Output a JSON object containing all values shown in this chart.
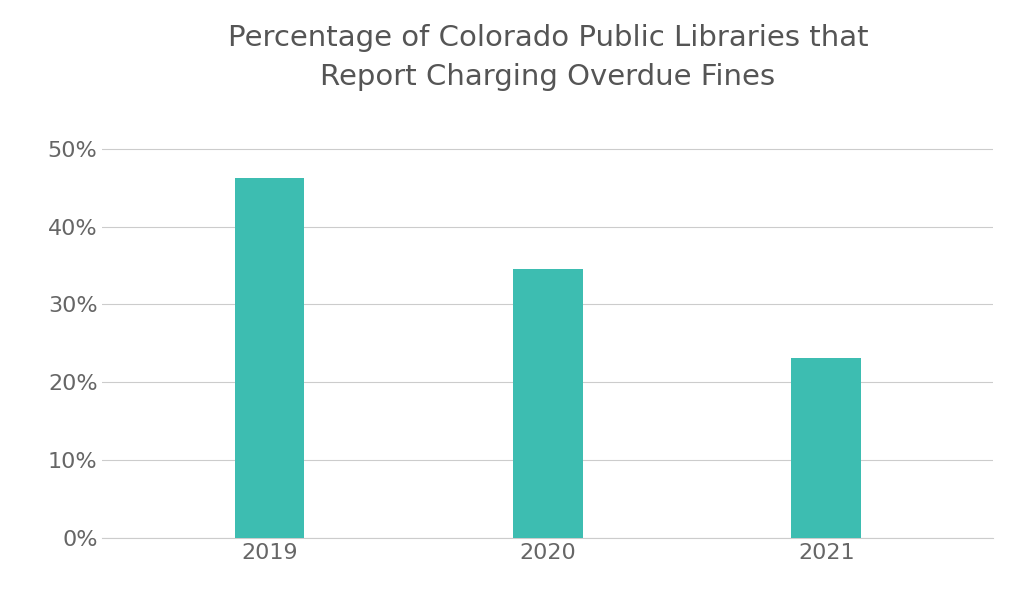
{
  "categories": [
    "2019",
    "2020",
    "2021"
  ],
  "values": [
    46.3,
    34.5,
    23.1
  ],
  "bar_color": "#3dbdb1",
  "title": "Percentage of Colorado Public Libraries that\nReport Charging Overdue Fines",
  "title_fontsize": 21,
  "title_color": "#555555",
  "tick_label_color": "#666666",
  "tick_label_fontsize": 16,
  "ylim": [
    0,
    55
  ],
  "yticks": [
    0,
    10,
    20,
    30,
    40,
    50
  ],
  "background_color": "#ffffff",
  "grid_color": "#cccccc",
  "bar_width": 0.25
}
